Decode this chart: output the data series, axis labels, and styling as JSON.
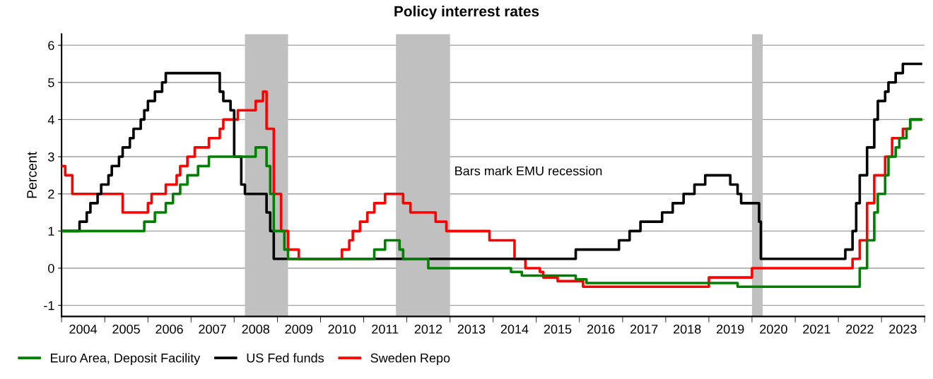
{
  "chart_data": {
    "type": "step",
    "title": "Policy interrest rates",
    "ylabel": "Percent",
    "xlim": [
      "2004-01-01",
      "2024-01-01"
    ],
    "ylim": [
      -1.3,
      6.3
    ],
    "yticks": [
      -1,
      0,
      1,
      2,
      3,
      4,
      5,
      6
    ],
    "xticks": [
      {
        "value": "2004-01-01",
        "label": null
      },
      {
        "value": "2004-07-01",
        "label": "2004"
      },
      {
        "value": "2005-01-01",
        "label": null
      },
      {
        "value": "2005-07-01",
        "label": "2005"
      },
      {
        "value": "2006-01-01",
        "label": null
      },
      {
        "value": "2006-07-01",
        "label": "2006"
      },
      {
        "value": "2007-01-01",
        "label": null
      },
      {
        "value": "2007-07-01",
        "label": "2007"
      },
      {
        "value": "2008-01-01",
        "label": null
      },
      {
        "value": "2008-07-01",
        "label": "2008"
      },
      {
        "value": "2009-01-01",
        "label": null
      },
      {
        "value": "2009-07-01",
        "label": "2009"
      },
      {
        "value": "2010-01-01",
        "label": null
      },
      {
        "value": "2010-07-01",
        "label": "2010"
      },
      {
        "value": "2011-01-01",
        "label": null
      },
      {
        "value": "2011-07-01",
        "label": "2011"
      },
      {
        "value": "2012-01-01",
        "label": null
      },
      {
        "value": "2012-07-01",
        "label": "2012"
      },
      {
        "value": "2013-01-01",
        "label": null
      },
      {
        "value": "2013-07-01",
        "label": "2013"
      },
      {
        "value": "2014-01-01",
        "label": null
      },
      {
        "value": "2014-07-01",
        "label": "2014"
      },
      {
        "value": "2015-01-01",
        "label": null
      },
      {
        "value": "2015-07-01",
        "label": "2015"
      },
      {
        "value": "2016-01-01",
        "label": null
      },
      {
        "value": "2016-07-01",
        "label": "2016"
      },
      {
        "value": "2017-01-01",
        "label": null
      },
      {
        "value": "2017-07-01",
        "label": "2017"
      },
      {
        "value": "2018-01-01",
        "label": null
      },
      {
        "value": "2018-07-01",
        "label": "2018"
      },
      {
        "value": "2019-01-01",
        "label": null
      },
      {
        "value": "2019-07-01",
        "label": "2019"
      },
      {
        "value": "2020-01-01",
        "label": null
      },
      {
        "value": "2020-07-01",
        "label": "2020"
      },
      {
        "value": "2021-01-01",
        "label": null
      },
      {
        "value": "2021-07-01",
        "label": "2021"
      },
      {
        "value": "2022-01-01",
        "label": null
      },
      {
        "value": "2022-07-01",
        "label": "2022"
      },
      {
        "value": "2023-01-01",
        "label": null
      },
      {
        "value": "2023-07-01",
        "label": "2023"
      },
      {
        "value": "2024-01-01",
        "label": null
      }
    ],
    "grid": "y",
    "legend": "bottom left",
    "line_style": "solid",
    "marker": "none",
    "bands": [
      {
        "axis": "x",
        "from": "2008-04-01",
        "to": "2009-04-01",
        "label": null,
        "color": "#c0c0c0"
      },
      {
        "axis": "x",
        "from": "2011-10-01",
        "to": "2013-01-01",
        "label": null,
        "color": "#c0c0c0"
      },
      {
        "axis": "x",
        "from": "2020-01-01",
        "to": "2020-04-01",
        "label": null,
        "color": "#c0c0c0"
      }
    ],
    "annotations": [
      "Bars mark EMU recession"
    ],
    "series": [
      {
        "name": "Euro Area, Deposit Facility",
        "color": "#008000",
        "x": [
          "2004-01-01",
          "2005-12-01",
          "2006-03-01",
          "2006-06-01",
          "2006-08-01",
          "2006-10-01",
          "2006-12-01",
          "2007-03-01",
          "2007-06-01",
          "2008-07-01",
          "2008-10-01",
          "2008-11-01",
          "2008-12-01",
          "2009-01-01",
          "2009-03-01",
          "2009-04-01",
          "2011-04-01",
          "2011-07-01",
          "2011-11-01",
          "2011-12-01",
          "2012-07-01",
          "2014-06-01",
          "2014-09-01",
          "2015-12-01",
          "2016-03-01",
          "2019-09-01",
          "2022-07-01",
          "2022-09-01",
          "2022-11-01",
          "2022-12-01",
          "2023-02-01",
          "2023-03-01",
          "2023-05-01",
          "2023-06-01",
          "2023-08-01",
          "2023-09-01",
          "2023-12-01"
        ],
        "values": [
          1.0,
          1.25,
          1.5,
          1.75,
          2.0,
          2.25,
          2.5,
          2.75,
          3.0,
          3.25,
          2.75,
          2.0,
          1.0,
          1.0,
          0.5,
          0.25,
          0.5,
          0.75,
          0.5,
          0.25,
          0.0,
          -0.1,
          -0.2,
          -0.3,
          -0.4,
          -0.5,
          0.0,
          0.75,
          1.5,
          2.0,
          2.5,
          3.0,
          3.25,
          3.5,
          3.75,
          4.0,
          4.0
        ]
      },
      {
        "name": "US Fed funds",
        "color": "#000000",
        "x": [
          "2004-01-01",
          "2004-06-01",
          "2004-08-01",
          "2004-09-01",
          "2004-11-01",
          "2004-12-01",
          "2005-02-01",
          "2005-03-01",
          "2005-05-01",
          "2005-06-01",
          "2005-08-01",
          "2005-09-01",
          "2005-11-01",
          "2005-12-01",
          "2006-01-01",
          "2006-03-01",
          "2006-05-01",
          "2006-06-01",
          "2007-09-01",
          "2007-10-01",
          "2007-12-01",
          "2008-01-01",
          "2008-02-01",
          "2008-03-01",
          "2008-04-01",
          "2008-10-01",
          "2008-11-01",
          "2008-12-01",
          "2015-12-01",
          "2016-12-01",
          "2017-03-01",
          "2017-06-01",
          "2017-12-01",
          "2018-03-01",
          "2018-06-01",
          "2018-09-01",
          "2018-12-01",
          "2019-07-01",
          "2019-09-01",
          "2019-10-01",
          "2020-03-01",
          "2020-03-16",
          "2022-03-01",
          "2022-05-01",
          "2022-06-01",
          "2022-07-01",
          "2022-09-01",
          "2022-11-01",
          "2022-12-01",
          "2023-02-01",
          "2023-03-01",
          "2023-05-01",
          "2023-07-01",
          "2023-12-01"
        ],
        "values": [
          1.0,
          1.25,
          1.5,
          1.75,
          2.0,
          2.25,
          2.5,
          2.75,
          3.0,
          3.25,
          3.5,
          3.75,
          4.0,
          4.25,
          4.5,
          4.75,
          5.0,
          5.25,
          4.75,
          4.5,
          4.25,
          3.0,
          3.0,
          2.25,
          2.0,
          1.5,
          1.0,
          0.25,
          0.5,
          0.75,
          1.0,
          1.25,
          1.5,
          1.75,
          2.0,
          2.25,
          2.5,
          2.25,
          2.0,
          1.75,
          1.25,
          0.25,
          0.5,
          1.0,
          1.75,
          2.5,
          3.25,
          4.0,
          4.5,
          4.75,
          5.0,
          5.25,
          5.5,
          5.5
        ]
      },
      {
        "name": "Sweden Repo",
        "color": "#ff0000",
        "x": [
          "2004-01-01",
          "2004-02-01",
          "2004-04-01",
          "2005-06-01",
          "2006-01-01",
          "2006-02-01",
          "2006-06-01",
          "2006-09-01",
          "2006-10-01",
          "2006-12-01",
          "2007-02-01",
          "2007-06-01",
          "2007-09-01",
          "2007-10-01",
          "2008-02-01",
          "2008-07-01",
          "2008-09-01",
          "2008-10-01",
          "2008-11-01",
          "2008-12-01",
          "2009-02-01",
          "2009-04-01",
          "2009-07-01",
          "2010-07-01",
          "2010-09-01",
          "2010-10-01",
          "2010-12-01",
          "2011-02-01",
          "2011-04-01",
          "2011-07-01",
          "2011-12-01",
          "2012-02-01",
          "2012-09-01",
          "2012-12-01",
          "2013-12-01",
          "2014-07-01",
          "2014-10-01",
          "2015-02-01",
          "2015-03-01",
          "2015-07-01",
          "2016-02-01",
          "2019-01-01",
          "2020-01-01",
          "2022-05-01",
          "2022-07-01",
          "2022-09-01",
          "2022-11-01",
          "2023-02-01",
          "2023-04-01",
          "2023-07-01",
          "2023-09-01",
          "2023-12-01"
        ],
        "values": [
          2.75,
          2.5,
          2.0,
          1.5,
          1.75,
          2.0,
          2.25,
          2.5,
          2.75,
          3.0,
          3.25,
          3.5,
          3.75,
          4.0,
          4.25,
          4.5,
          4.75,
          3.75,
          3.75,
          2.0,
          1.0,
          0.5,
          0.25,
          0.5,
          0.75,
          1.0,
          1.25,
          1.5,
          1.75,
          2.0,
          1.75,
          1.5,
          1.25,
          1.0,
          0.75,
          0.25,
          0.0,
          -0.1,
          -0.25,
          -0.35,
          -0.5,
          -0.25,
          0.0,
          0.25,
          0.75,
          1.75,
          2.5,
          3.0,
          3.5,
          3.75,
          4.0,
          4.0
        ]
      }
    ]
  }
}
